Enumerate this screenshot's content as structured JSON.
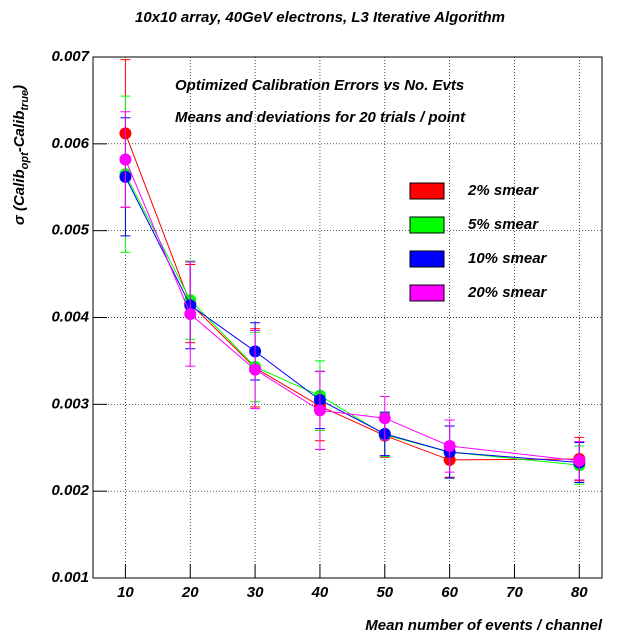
{
  "chart_data": {
    "type": "line",
    "title": "10x10 array, 40GeV electrons, L3 Iterative Algorithm",
    "annotations": [
      "Optimized Calibration Errors vs No. Evts",
      "Means and deviations for 20 trials / point"
    ],
    "xlabel": "Mean number of events / channel",
    "ylabel_parts": [
      "σ (Calib",
      "opt",
      "-Calib",
      "true",
      ")"
    ],
    "x": [
      10,
      20,
      30,
      40,
      50,
      60,
      80
    ],
    "xlim": [
      5,
      83.5
    ],
    "xticks": [
      10,
      20,
      30,
      40,
      50,
      60,
      70,
      80
    ],
    "ylim": [
      0.001,
      0.007
    ],
    "yticks": [
      0.001,
      0.002,
      0.003,
      0.004,
      0.005,
      0.006,
      0.007
    ],
    "grid": true,
    "legend": "right",
    "series": [
      {
        "name": "2% smear",
        "color": "#ff0000",
        "values": [
          0.00612,
          0.00416,
          0.00342,
          0.00298,
          0.00264,
          0.00236,
          0.00237
        ],
        "errors": [
          0.00085,
          0.00045,
          0.00045,
          0.0004,
          0.00025,
          0.0002,
          0.00025
        ]
      },
      {
        "name": "5% smear",
        "color": "#00ff00",
        "values": [
          0.00565,
          0.0042,
          0.00343,
          0.0031,
          0.00265,
          0.00245,
          0.0023
        ],
        "errors": [
          0.0009,
          0.00045,
          0.0004,
          0.0004,
          0.00025,
          0.0003,
          0.00022
        ]
      },
      {
        "name": "10% smear",
        "color": "#0000ff",
        "values": [
          0.00562,
          0.00414,
          0.00361,
          0.00305,
          0.00266,
          0.00245,
          0.00233
        ],
        "errors": [
          0.00068,
          0.0005,
          0.00033,
          0.00033,
          0.00025,
          0.0003,
          0.00023
        ]
      },
      {
        "name": "20% smear",
        "color": "#ff00ff",
        "values": [
          0.00582,
          0.00404,
          0.0034,
          0.00293,
          0.00284,
          0.00252,
          0.00235
        ],
        "errors": [
          0.00055,
          0.0006,
          0.00045,
          0.00045,
          0.00025,
          0.0003,
          0.00022
        ]
      }
    ]
  }
}
